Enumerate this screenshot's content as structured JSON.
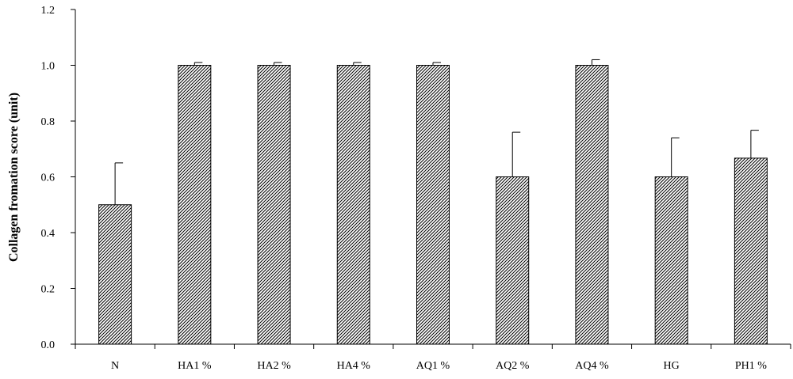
{
  "chart_data": {
    "type": "bar",
    "title": "",
    "xlabel": "",
    "ylabel": "Collagen fromation score (unit)",
    "categories": [
      "N",
      "HA1 %",
      "HA2 %",
      "HA4 %",
      "AQ1 %",
      "AQ2 %",
      "AQ4 %",
      "HG",
      "PH1 %"
    ],
    "values": [
      0.5,
      1.0,
      1.0,
      1.0,
      1.0,
      0.6,
      1.0,
      0.6,
      0.667
    ],
    "error_upper": [
      0.15,
      0.01,
      0.01,
      0.01,
      0.01,
      0.16,
      0.02,
      0.14,
      0.1
    ],
    "ylim": [
      0,
      1.2
    ],
    "yticks": [
      "0.0",
      "0.2",
      "0.4",
      "0.6",
      "0.8",
      "1.0",
      "1.2"
    ],
    "ytick_values": [
      0,
      0.2,
      0.4,
      0.6,
      0.8,
      1.0,
      1.2
    ],
    "grid": false,
    "legend": "none",
    "bar_fill": "diagonal-hatch",
    "bar_color": "#ffffff",
    "line_color": "#000000"
  }
}
